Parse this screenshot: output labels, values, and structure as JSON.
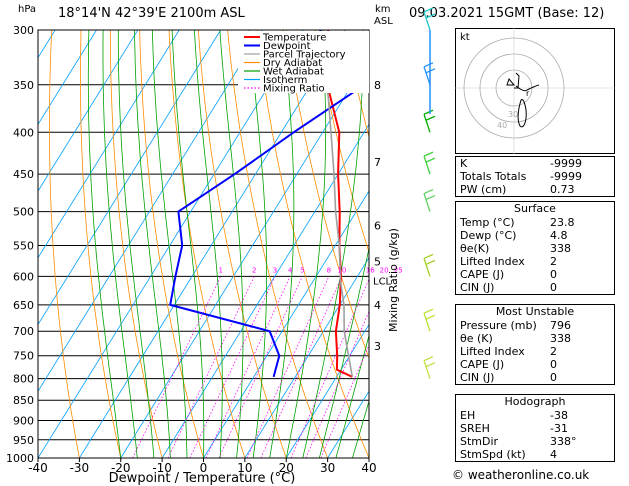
{
  "header": {
    "location": "18°14'N 42°39'E 2100m ASL",
    "datetime": "09.03.2021 15GMT (Base: 12)",
    "left_unit": "hPa",
    "right_unit_top": "km",
    "right_unit_bottom": "ASL"
  },
  "colors": {
    "temperature": "#ff0000",
    "dewpoint": "#0000ff",
    "parcel": "#a0a0a0",
    "dry_adiabat": "#ff8c00",
    "wet_adiabat": "#00a000",
    "isotherm": "#00a0ff",
    "mixing_ratio": "#ff00ff",
    "wind_barb": "#1ec8c8"
  },
  "chart_data": {
    "type": "line",
    "title": "",
    "xlabel": "Dewpoint / Temperature (°C)",
    "ylabel": "hPa",
    "right_label": "Mixing Ratio (g/kg)",
    "xlim": [
      -40,
      40
    ],
    "ylim": [
      1000,
      300
    ],
    "x_ticks": [
      -40,
      -30,
      -20,
      -10,
      0,
      10,
      20,
      30,
      40
    ],
    "pressure_ticks": [
      300,
      350,
      400,
      450,
      500,
      550,
      600,
      650,
      700,
      750,
      800,
      850,
      900,
      950,
      1000
    ],
    "km_ticks": [
      {
        "p": 350,
        "label": "8"
      },
      {
        "p": 435,
        "label": "7"
      },
      {
        "p": 520,
        "label": "6"
      },
      {
        "p": 575,
        "label": "5"
      },
      {
        "p": 650,
        "label": "4"
      },
      {
        "p": 730,
        "label": "3"
      }
    ],
    "lcl": {
      "p": 607,
      "label": "LCL"
    },
    "mixing_ratio_labels": [
      "1",
      "2",
      "3",
      "4",
      "5",
      "8",
      "10",
      "16",
      "20",
      "25"
    ],
    "legend": [
      "Temperature",
      "Dewpoint",
      "Parcel Trajectory",
      "Dry Adiabat",
      "Wet Adiabat",
      "Isotherm",
      "Mixing Ratio"
    ],
    "series": [
      {
        "name": "Temperature",
        "points": [
          [
            1000,
            null
          ],
          [
            796,
            23.8
          ],
          [
            780,
            19
          ],
          [
            750,
            17
          ],
          [
            700,
            13
          ],
          [
            650,
            10
          ],
          [
            600,
            6
          ],
          [
            550,
            1
          ],
          [
            500,
            -4
          ],
          [
            450,
            -10
          ],
          [
            400,
            -16
          ],
          [
            350,
            -26
          ],
          [
            300,
            -34
          ]
        ]
      },
      {
        "name": "Dewpoint",
        "points": [
          [
            796,
            4.8
          ],
          [
            750,
            3
          ],
          [
            700,
            -3
          ],
          [
            650,
            -31
          ],
          [
            600,
            -34
          ],
          [
            550,
            -37
          ],
          [
            500,
            -43
          ],
          [
            450,
            -35
          ],
          [
            400,
            -27
          ],
          [
            350,
            -17
          ],
          [
            320,
            -30
          ],
          [
            300,
            -36
          ]
        ]
      },
      {
        "name": "Parcel Trajectory",
        "points": [
          [
            796,
            23.8
          ],
          [
            700,
            15
          ],
          [
            650,
            11
          ],
          [
            607,
            6.5
          ],
          [
            550,
            1
          ],
          [
            500,
            -5
          ],
          [
            450,
            -11
          ],
          [
            400,
            -18
          ],
          [
            350,
            -26
          ],
          [
            300,
            -35
          ]
        ]
      }
    ],
    "hodograph": {
      "label": "kt",
      "ring_labels": [
        "40",
        "30"
      ]
    }
  },
  "indices": {
    "rows": [
      {
        "label": "K",
        "value": "-9999"
      },
      {
        "label": "Totals Totals",
        "value": "-9999"
      },
      {
        "label": "PW (cm)",
        "value": "0.73"
      }
    ]
  },
  "surface": {
    "title": "Surface",
    "rows": [
      {
        "label": "Temp (°C)",
        "value": "23.8"
      },
      {
        "label": "Dewp (°C)",
        "value": "4.8"
      },
      {
        "label": "θe(K)",
        "value": "338"
      },
      {
        "label": "Lifted Index",
        "value": "2"
      },
      {
        "label": "CAPE (J)",
        "value": "0"
      },
      {
        "label": "CIN (J)",
        "value": "0"
      }
    ]
  },
  "most_unstable": {
    "title": "Most Unstable",
    "rows": [
      {
        "label": "Pressure (mb)",
        "value": "796"
      },
      {
        "label": "θe (K)",
        "value": "338"
      },
      {
        "label": "Lifted Index",
        "value": "2"
      },
      {
        "label": "CAPE (J)",
        "value": "0"
      },
      {
        "label": "CIN (J)",
        "value": "0"
      }
    ]
  },
  "hodograph_table": {
    "title": "Hodograph",
    "rows": [
      {
        "label": "EH",
        "value": "-38"
      },
      {
        "label": "SREH",
        "value": "-31"
      },
      {
        "label": "StmDir",
        "value": "338°"
      },
      {
        "label": "StmSpd (kt)",
        "value": "4"
      }
    ]
  },
  "footer": "© weatheronline.co.uk"
}
